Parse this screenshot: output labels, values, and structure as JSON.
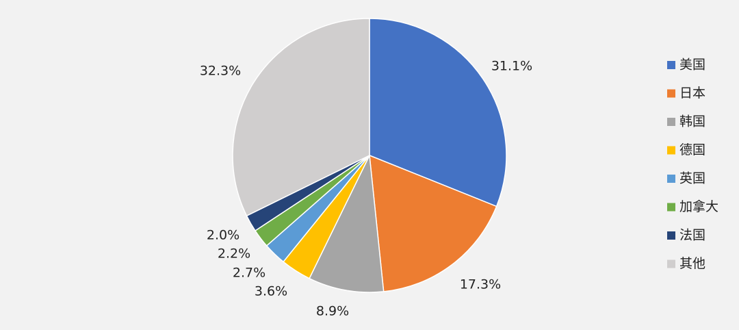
{
  "chart_data": {
    "type": "pie",
    "title": "",
    "label_format": "{value}%",
    "start_angle": "12 o'clock",
    "direction": "clockwise",
    "legend": {
      "position": "right",
      "orientation": "vertical"
    },
    "slices": [
      {
        "label": "美国",
        "value": 31.1,
        "value_label": "31.1%",
        "color": "#4472c4"
      },
      {
        "label": "日本",
        "value": 17.3,
        "value_label": "17.3%",
        "color": "#ed7d31"
      },
      {
        "label": "韩国",
        "value": 8.9,
        "value_label": "8.9%",
        "color": "#a5a5a5"
      },
      {
        "label": "德国",
        "value": 3.6,
        "value_label": "3.6%",
        "color": "#ffc000"
      },
      {
        "label": "英国",
        "value": 2.7,
        "value_label": "2.7%",
        "color": "#5b9bd5"
      },
      {
        "label": "加拿大",
        "value": 2.2,
        "value_label": "2.2%",
        "color": "#70ad47"
      },
      {
        "label": "法国",
        "value": 2.0,
        "value_label": "2.0%",
        "color": "#264478"
      },
      {
        "label": "其他",
        "value": 32.3,
        "value_label": "32.3%",
        "color": "#d0cece"
      }
    ]
  }
}
